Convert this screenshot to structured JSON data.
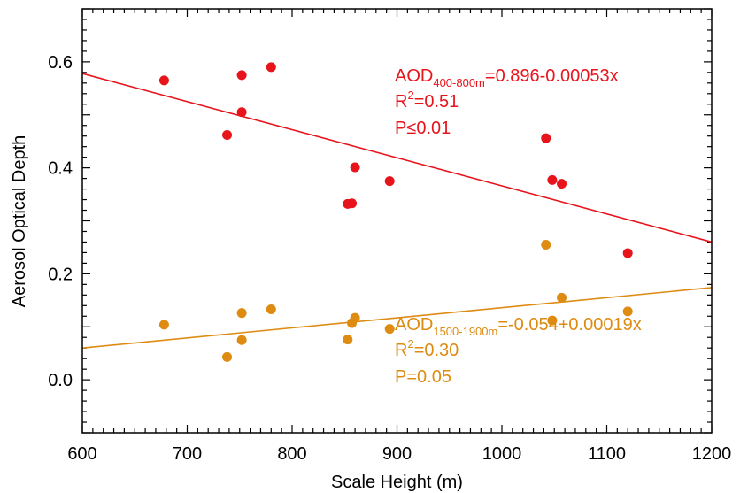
{
  "chart_data": {
    "type": "scatter",
    "xlabel": "Scale Height (m)",
    "ylabel": "Aerosol Optical Depth",
    "xlim": [
      600,
      1200
    ],
    "ylim": [
      -0.1,
      0.7
    ],
    "xticks": [
      600,
      700,
      800,
      900,
      1000,
      1100,
      1200
    ],
    "xtick_labels": [
      "600",
      "700",
      "800",
      "900",
      "1000",
      "1100",
      "1200"
    ],
    "yticks": [
      0.0,
      0.2,
      0.4,
      0.6
    ],
    "ytick_labels": [
      "0.0",
      "0.2",
      "0.4",
      "0.6"
    ],
    "grid": false,
    "series": [
      {
        "key": "red",
        "color": "#e8141c",
        "x": [
          678,
          738,
          752,
          752,
          780,
          853,
          857,
          860,
          893,
          1042,
          1048,
          1057,
          1120
        ],
        "y": [
          0.565,
          0.462,
          0.575,
          0.505,
          0.59,
          0.332,
          0.333,
          0.401,
          0.375,
          0.456,
          0.377,
          0.37,
          0.239
        ],
        "fit": {
          "intercept": 0.896,
          "slope": -0.00053
        },
        "annotation": {
          "line1_main": "AOD",
          "line1_sub": "400-800m",
          "line1_rest": "=0.896-0.00053x",
          "line2_main": "R",
          "line2_sup": "2",
          "line2_rest": "=0.51",
          "line3": "P≤0.01"
        }
      },
      {
        "key": "orange",
        "color": "#de8b12",
        "x": [
          678,
          738,
          752,
          752,
          780,
          853,
          857,
          860,
          893,
          1042,
          1048,
          1057,
          1120
        ],
        "y": [
          0.104,
          0.043,
          0.126,
          0.075,
          0.133,
          0.076,
          0.107,
          0.117,
          0.096,
          0.255,
          0.112,
          0.155,
          0.129
        ],
        "fit": {
          "intercept": -0.054,
          "slope": 0.00019
        },
        "annotation": {
          "line1_main": "AOD",
          "line1_sub": "1500-1900m",
          "line1_rest": "=-0.054+0.00019x",
          "line2_main": "R",
          "line2_sup": "2",
          "line2_rest": "=0.30",
          "line3": "P=0.05"
        }
      }
    ]
  }
}
